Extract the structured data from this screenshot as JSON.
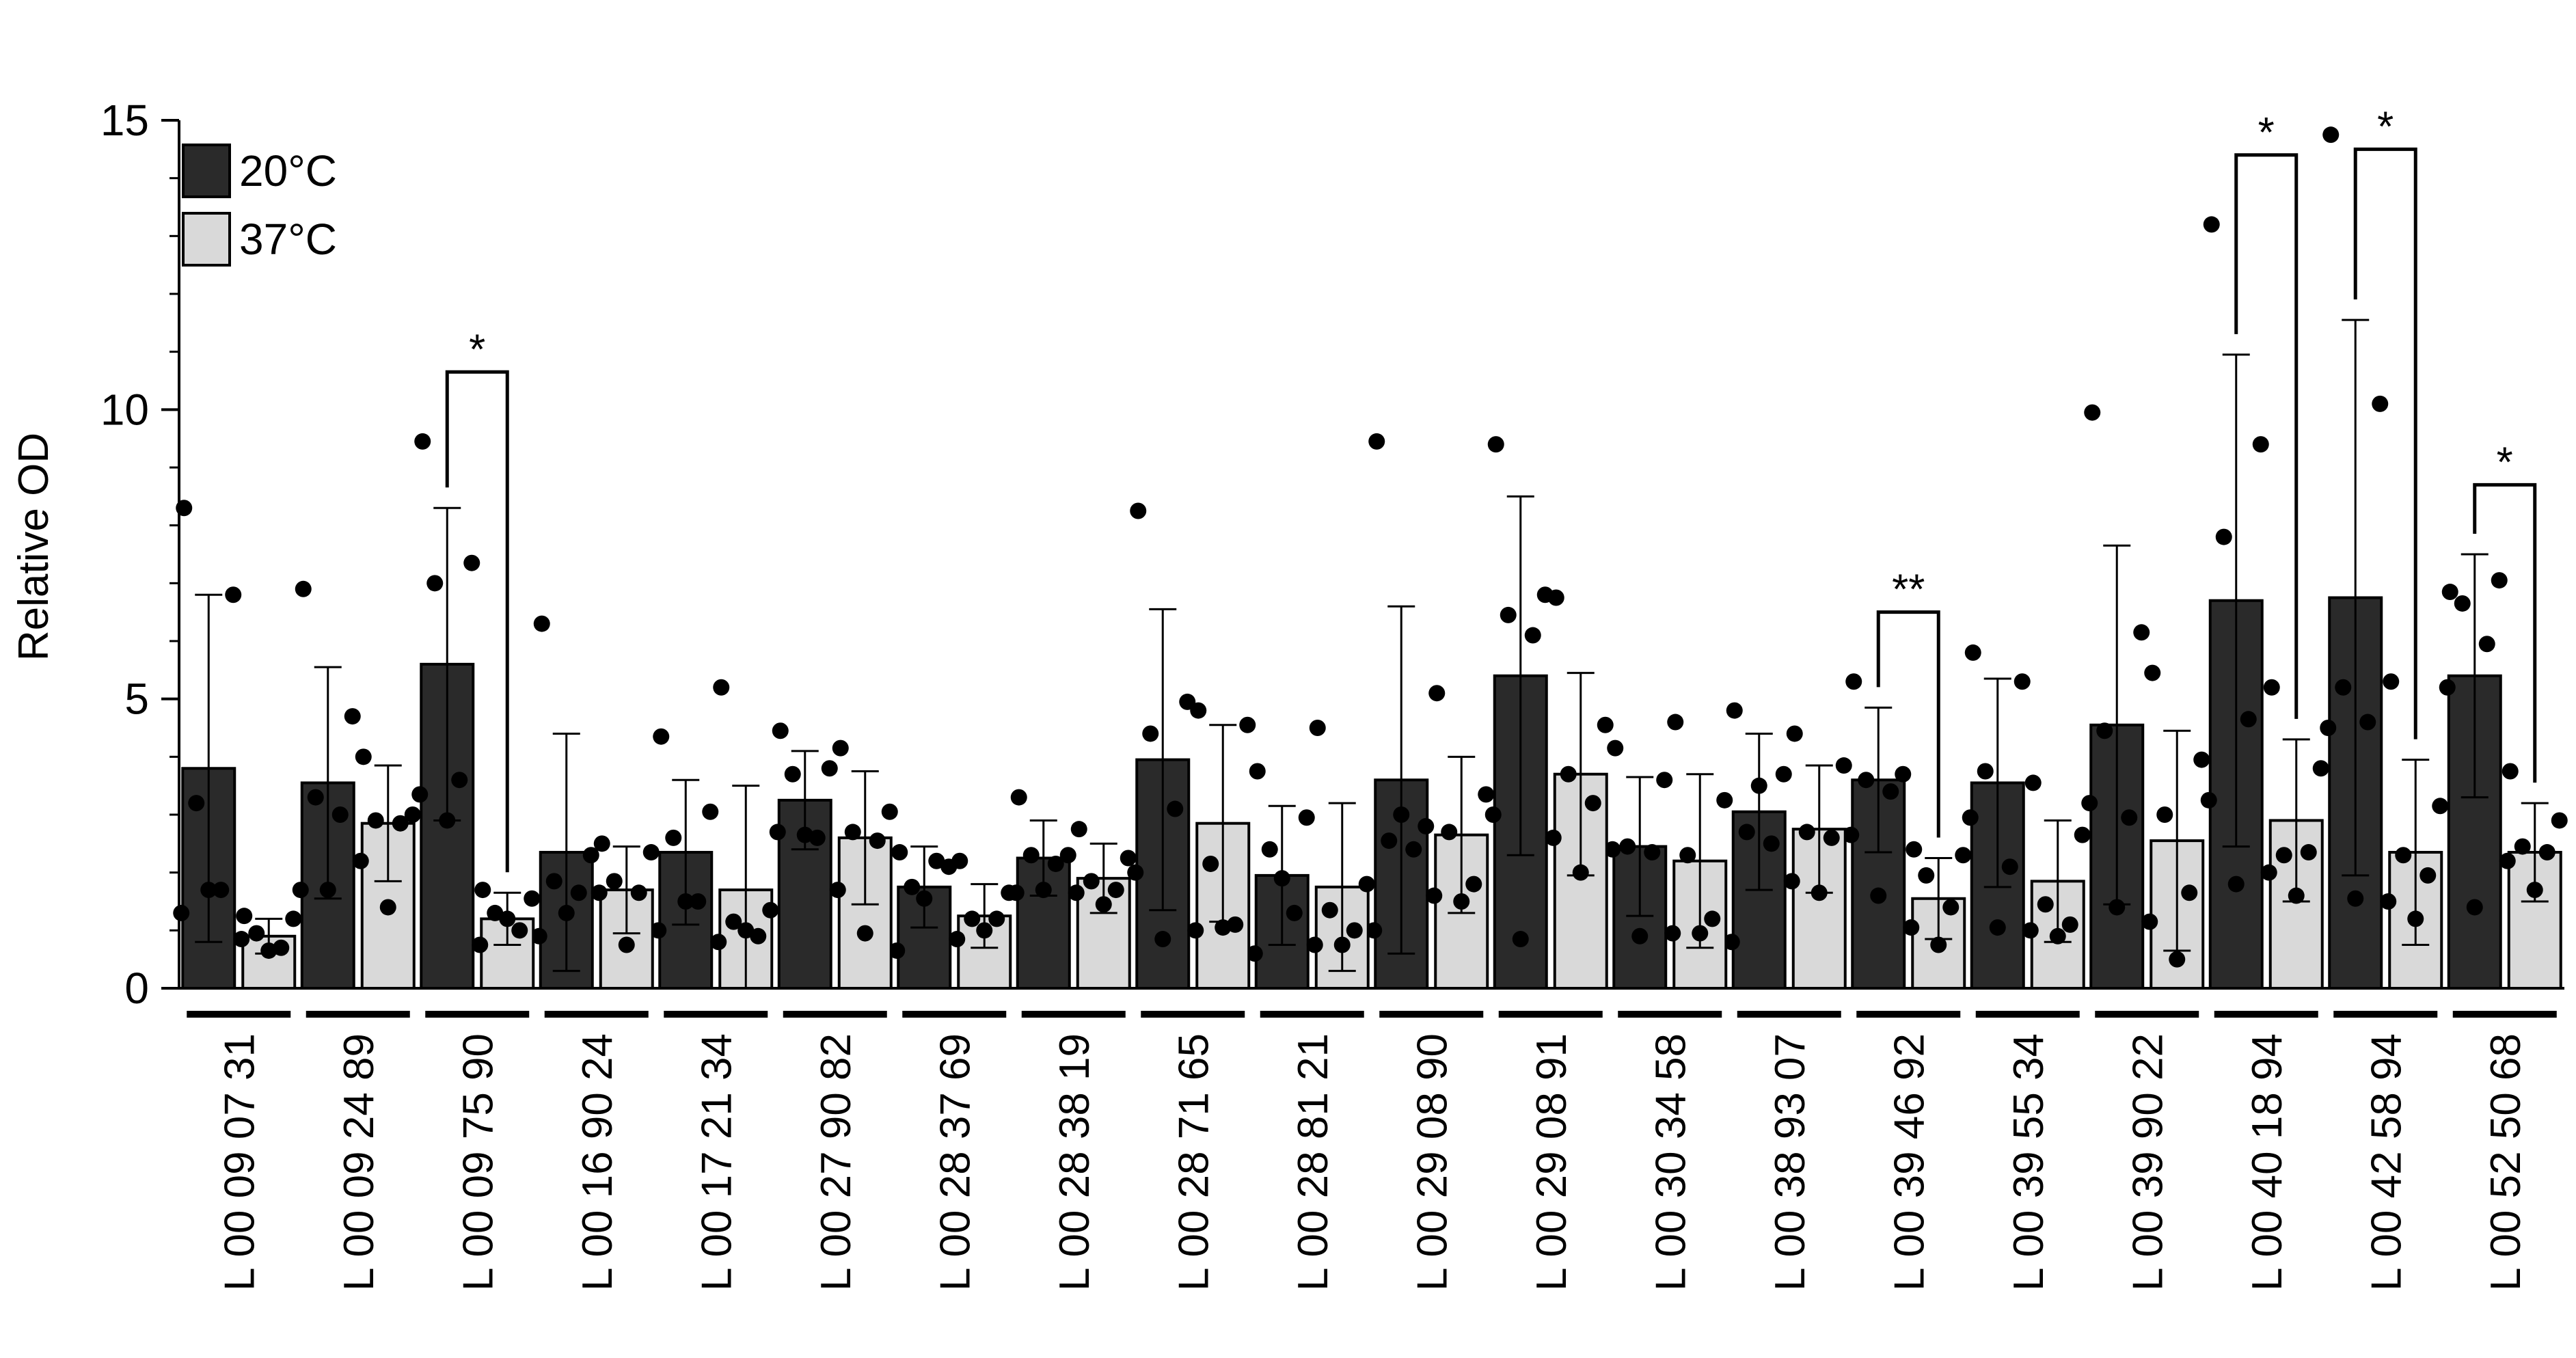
{
  "chart_data": {
    "type": "bar",
    "title": "",
    "xlabel": "",
    "ylabel": "Relative OD",
    "ylim": [
      0,
      15
    ],
    "y_ticks": [
      "0",
      "5",
      "10",
      "15"
    ],
    "grid": false,
    "legend_position": "top-left",
    "colors": {
      "20°C": "#2a2a2a",
      "37°C": "#d9d9d9",
      "points": "#000000"
    },
    "categories": [
      "L 00 09 07 31",
      "L 00 09 24 89",
      "L 00 09 75 90",
      "L 00 16 90 24",
      "L 00 17 21 34",
      "L 00 27 90 82",
      "L 00 28 37 69",
      "L 00 28 38 19",
      "L 00 28 71 65",
      "L 00 28 81 21",
      "L 00 29 08 90",
      "L 00 29 08 91",
      "L 00 30 34 58",
      "L 00 38 93 07",
      "L 00 39 46 92",
      "L 00 39 55 34",
      "L 00 39 90 22",
      "L 00 40 18 94",
      "L 00 42 58 94",
      "L 00 52 50 68"
    ],
    "series": [
      {
        "name": "20°C",
        "values": [
          3.8,
          3.55,
          5.6,
          2.35,
          2.35,
          3.25,
          1.75,
          2.25,
          3.95,
          1.95,
          3.6,
          5.4,
          2.45,
          3.05,
          3.6,
          3.55,
          4.55,
          6.7,
          6.75,
          5.4
        ],
        "sd": [
          3.0,
          2.0,
          2.7,
          2.05,
          1.25,
          0.85,
          0.7,
          0.65,
          2.6,
          1.2,
          3.0,
          3.1,
          1.2,
          1.35,
          1.25,
          1.8,
          3.1,
          4.25,
          4.8,
          2.1
        ],
        "points": [
          [
            8.3,
            6.8,
            3.2,
            1.7,
            1.3,
            1.7
          ],
          [
            6.9,
            4.7,
            3.3,
            3.0,
            1.7,
            1.7
          ],
          [
            9.45,
            7.35,
            7.0,
            3.6,
            3.35,
            2.9
          ],
          [
            6.3,
            2.3,
            1.85,
            1.65,
            0.9,
            1.3
          ],
          [
            4.35,
            3.05,
            2.6,
            1.5,
            1.0,
            1.5
          ],
          [
            4.45,
            3.8,
            3.7,
            2.6,
            2.7,
            2.65
          ],
          [
            2.35,
            2.1,
            1.75,
            2.2,
            0.65,
            1.55
          ],
          [
            3.3,
            2.3,
            2.3,
            2.15,
            1.65,
            1.7
          ],
          [
            8.25,
            4.95,
            4.4,
            3.1,
            2.0,
            0.85
          ],
          [
            3.75,
            2.95,
            2.4,
            1.3,
            0.6,
            1.9
          ],
          [
            9.45,
            2.8,
            2.55,
            2.4,
            1.0,
            3.0
          ],
          [
            9.4,
            6.8,
            6.45,
            6.1,
            3.0,
            0.85
          ],
          [
            4.15,
            3.6,
            2.45,
            2.35,
            2.4,
            0.9
          ],
          [
            4.8,
            3.7,
            2.7,
            2.5,
            0.8,
            3.5
          ],
          [
            5.3,
            3.7,
            3.6,
            3.4,
            2.65,
            1.6
          ],
          [
            5.8,
            5.3,
            3.75,
            2.1,
            2.95,
            1.05
          ],
          [
            9.95,
            6.15,
            4.45,
            2.95,
            3.2,
            1.4
          ],
          [
            13.2,
            9.4,
            7.8,
            4.65,
            3.25,
            1.8
          ],
          [
            14.75,
            10.1,
            5.2,
            4.6,
            4.5,
            1.55
          ],
          [
            6.85,
            7.05,
            6.65,
            5.95,
            5.2,
            1.4
          ]
        ]
      },
      {
        "name": "37°C",
        "values": [
          0.9,
          2.85,
          1.2,
          1.7,
          1.7,
          2.6,
          1.25,
          1.9,
          2.85,
          1.75,
          2.65,
          3.7,
          2.2,
          2.75,
          1.55,
          1.85,
          2.55,
          2.9,
          2.35,
          2.35
        ],
        "sd": [
          0.3,
          1.0,
          0.45,
          0.75,
          1.8,
          1.15,
          0.55,
          0.6,
          1.7,
          1.45,
          1.35,
          1.75,
          1.5,
          1.1,
          0.7,
          1.05,
          1.9,
          1.4,
          1.6,
          0.85
        ],
        "points": [
          [
            1.25,
            1.2,
            0.95,
            0.7,
            0.85,
            0.65
          ],
          [
            4.0,
            3.0,
            2.9,
            2.85,
            2.2,
            1.4
          ],
          [
            1.7,
            1.55,
            1.3,
            1.0,
            0.75,
            1.2
          ],
          [
            2.5,
            2.35,
            1.85,
            1.65,
            1.65,
            0.75
          ],
          [
            5.2,
            1.35,
            1.15,
            0.9,
            0.8,
            1.0
          ],
          [
            4.15,
            3.05,
            2.7,
            2.55,
            1.7,
            0.95
          ],
          [
            2.2,
            1.65,
            1.2,
            1.2,
            0.85,
            1.0
          ],
          [
            2.75,
            2.25,
            1.85,
            1.7,
            1.65,
            1.45
          ],
          [
            4.8,
            4.55,
            2.15,
            1.1,
            1.0,
            1.05
          ],
          [
            4.5,
            1.8,
            1.35,
            1.0,
            0.75,
            0.75
          ],
          [
            5.1,
            3.35,
            2.7,
            1.8,
            1.6,
            1.5
          ],
          [
            6.75,
            4.55,
            3.7,
            3.2,
            2.6,
            2.0
          ],
          [
            4.6,
            3.25,
            2.3,
            1.2,
            0.95,
            0.95
          ],
          [
            4.4,
            3.85,
            2.7,
            2.6,
            1.85,
            1.65
          ],
          [
            2.4,
            2.3,
            1.95,
            1.4,
            1.05,
            0.75
          ],
          [
            3.55,
            2.65,
            1.45,
            1.1,
            1.0,
            0.9
          ],
          [
            5.45,
            3.95,
            3.0,
            1.65,
            1.15,
            0.5
          ],
          [
            5.2,
            3.8,
            2.3,
            2.35,
            2.0,
            1.6
          ],
          [
            5.3,
            3.15,
            2.3,
            1.95,
            1.5,
            1.2
          ],
          [
            3.75,
            2.9,
            2.45,
            2.35,
            2.2,
            1.7
          ]
        ]
      }
    ],
    "significance": [
      {
        "category_index": 2,
        "label": "*"
      },
      {
        "category_index": 14,
        "label": "**"
      },
      {
        "category_index": 17,
        "label": "*"
      },
      {
        "category_index": 18,
        "label": "*"
      },
      {
        "category_index": 19,
        "label": "*"
      }
    ]
  }
}
